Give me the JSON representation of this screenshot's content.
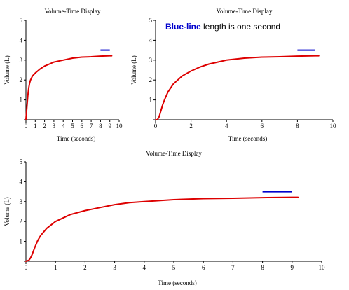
{
  "annotation": {
    "highlight": "Blue-line",
    "rest": " length is one second",
    "highlight_color": "#0000cc"
  },
  "colors": {
    "curve": "#dd0000",
    "scale_bar": "#0000cc",
    "axis": "#000000"
  },
  "chart_data": [
    {
      "type": "line",
      "title": "Volume-Time Display",
      "xlabel": "Time (seconds)",
      "ylabel": "Volume (L)",
      "xlim": [
        0,
        10
      ],
      "ylim": [
        0,
        5
      ],
      "x_ticks": [
        0,
        1,
        2,
        3,
        4,
        5,
        6,
        7,
        8,
        9,
        10
      ],
      "y_ticks": [
        1,
        2,
        3,
        4,
        5
      ],
      "grid": false,
      "series": [
        {
          "x": [
            0.0,
            0.1,
            0.2,
            0.3,
            0.4,
            0.5,
            0.7,
            1.0,
            1.5,
            2.0,
            2.5,
            3.0,
            3.5,
            4.0,
            5.0,
            6.0,
            7.0,
            8.0,
            9.0,
            9.2
          ],
          "y": [
            0.0,
            0.6,
            1.2,
            1.6,
            1.85,
            2.0,
            2.2,
            2.35,
            2.55,
            2.7,
            2.8,
            2.9,
            2.95,
            3.0,
            3.1,
            3.15,
            3.17,
            3.2,
            3.22,
            3.22
          ]
        }
      ],
      "scale_bar": {
        "x_start": 8.0,
        "x_end": 9.0,
        "y": 3.5
      }
    },
    {
      "type": "line",
      "title": "Volume-Time Display",
      "xlabel": "Time (seconds)",
      "ylabel": "Volume (L)",
      "xlim": [
        0,
        10
      ],
      "ylim": [
        0,
        5
      ],
      "x_ticks": [
        0,
        2,
        4,
        6,
        8,
        10
      ],
      "y_ticks": [
        1,
        2,
        3,
        4,
        5
      ],
      "grid": false,
      "series": [
        {
          "x": [
            0.0,
            0.1,
            0.2,
            0.3,
            0.4,
            0.5,
            0.7,
            1.0,
            1.5,
            2.0,
            2.5,
            3.0,
            3.5,
            4.0,
            5.0,
            6.0,
            7.0,
            8.0,
            9.0,
            9.2
          ],
          "y": [
            0.0,
            0.0,
            0.15,
            0.45,
            0.75,
            1.0,
            1.4,
            1.8,
            2.2,
            2.45,
            2.65,
            2.8,
            2.9,
            3.0,
            3.1,
            3.15,
            3.17,
            3.2,
            3.22,
            3.22
          ]
        }
      ],
      "scale_bar": {
        "x_start": 8.0,
        "x_end": 9.0,
        "y": 3.5
      }
    },
    {
      "type": "line",
      "title": "Volume-Time Display",
      "xlabel": "Time (seconds)",
      "ylabel": "Volume (L)",
      "xlim": [
        0,
        10
      ],
      "ylim": [
        0,
        5
      ],
      "x_ticks": [
        0,
        1,
        2,
        3,
        4,
        5,
        6,
        7,
        8,
        9,
        10
      ],
      "y_ticks": [
        1,
        2,
        3,
        4,
        5
      ],
      "grid": false,
      "series": [
        {
          "x": [
            0.0,
            0.1,
            0.15,
            0.2,
            0.3,
            0.4,
            0.5,
            0.7,
            1.0,
            1.5,
            2.0,
            2.5,
            3.0,
            3.5,
            4.0,
            5.0,
            6.0,
            7.0,
            8.0,
            9.0,
            9.2
          ],
          "y": [
            0.0,
            0.05,
            0.15,
            0.3,
            0.7,
            1.05,
            1.3,
            1.65,
            2.0,
            2.35,
            2.55,
            2.7,
            2.85,
            2.95,
            3.0,
            3.1,
            3.15,
            3.17,
            3.2,
            3.22,
            3.22
          ]
        }
      ],
      "scale_bar": {
        "x_start": 8.0,
        "x_end": 9.0,
        "y": 3.5
      }
    }
  ]
}
